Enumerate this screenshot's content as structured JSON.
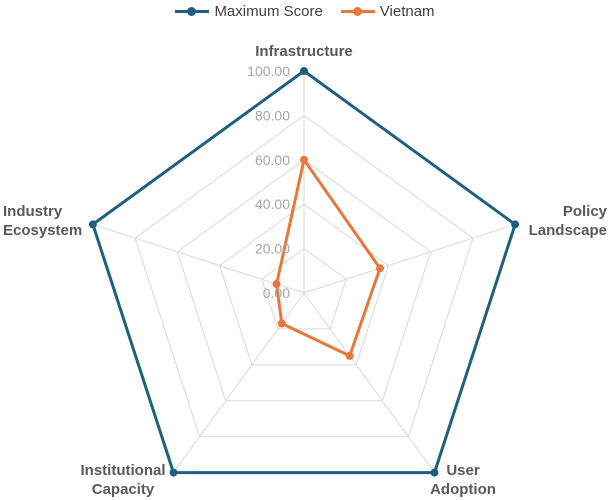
{
  "chart_data": {
    "type": "radar",
    "categories": [
      "Infrastructure",
      "Policy Landscape",
      "User Adoption",
      "Institutional Capacity",
      "Industry Ecosystem"
    ],
    "category_lines": [
      [
        "Infrastructure"
      ],
      [
        "Policy",
        "Landscape"
      ],
      [
        "User",
        "Adoption"
      ],
      [
        "Institutional",
        "Capacity"
      ],
      [
        "Industry",
        "Ecosystem"
      ]
    ],
    "rlim": [
      0,
      100
    ],
    "ticks": [
      "0.00",
      "20.00",
      "40.00",
      "60.00",
      "80.00",
      "100.00"
    ],
    "tick_values": [
      0,
      20,
      40,
      60,
      80,
      100
    ],
    "legend_position": "top",
    "series": [
      {
        "name": "Maximum Score",
        "color": "#1f5f7f",
        "values": [
          100,
          100,
          100,
          100,
          100
        ]
      },
      {
        "name": "Vietnam",
        "color": "#e8773a",
        "values": [
          60,
          36,
          35,
          17,
          13
        ]
      }
    ],
    "grid_color": "#d9d9d9"
  }
}
